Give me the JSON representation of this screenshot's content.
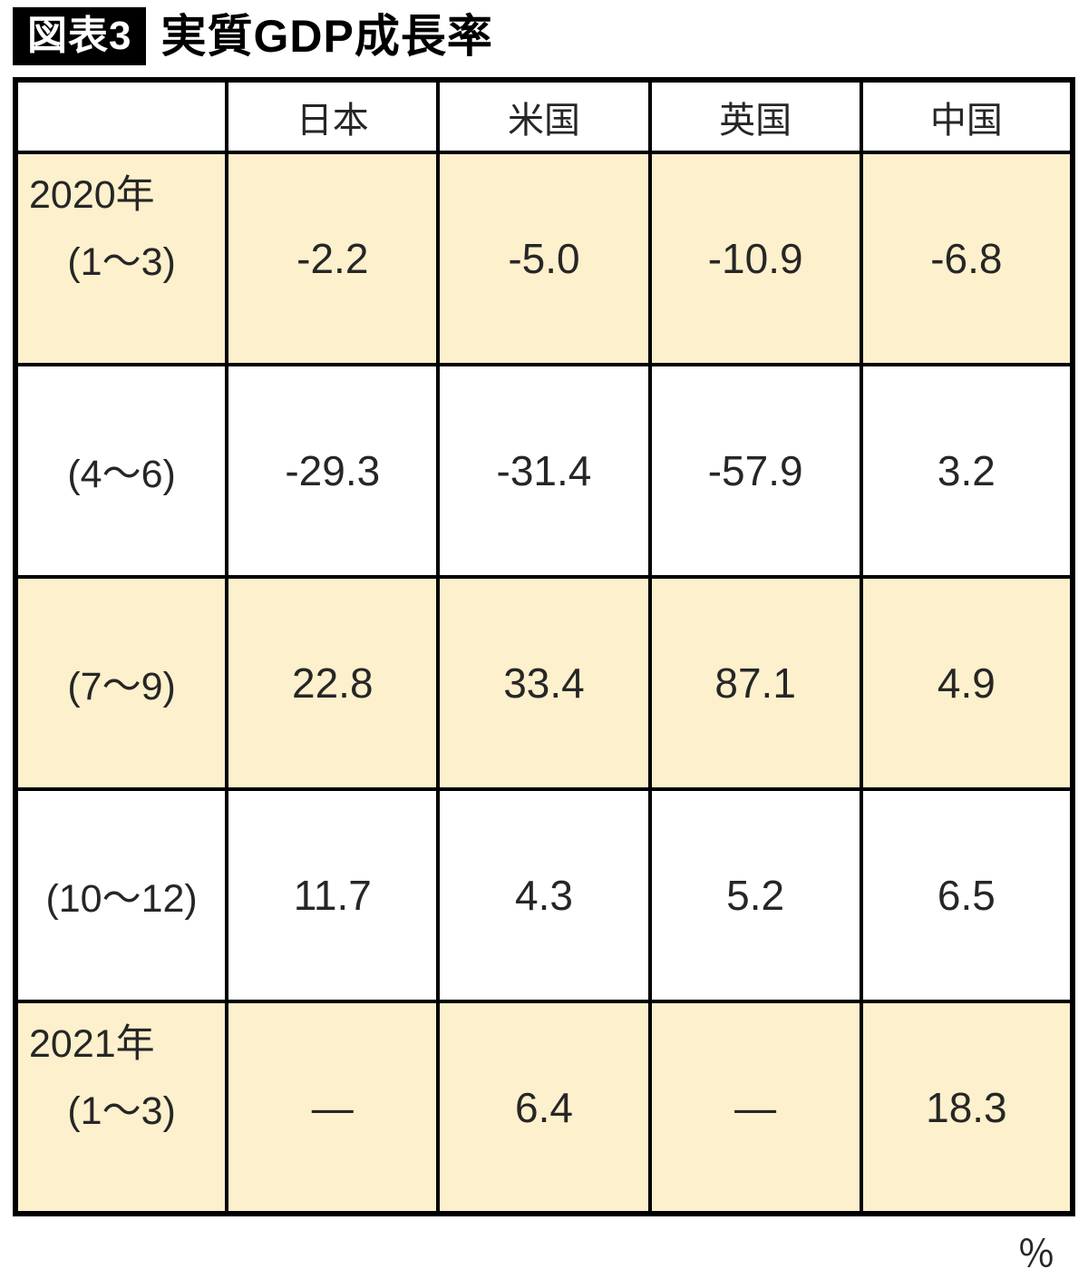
{
  "title": {
    "badge": "図表3",
    "text": "実質GDP成長率"
  },
  "unit_label": "％",
  "colors": {
    "shaded_row_bg": "#FDF0CC",
    "border": "#000000",
    "badge_bg": "#000000",
    "badge_text": "#FFFFFF",
    "text": "#262626"
  },
  "chart_data": {
    "type": "table",
    "title": "実質GDP成長率",
    "unit": "%",
    "columns": [
      "日本",
      "米国",
      "英国",
      "中国"
    ],
    "rows": [
      {
        "year": "2020年",
        "period": "(1～3)",
        "values": [
          "-2.2",
          "-5.0",
          "-10.9",
          "-6.8"
        ],
        "shaded": true
      },
      {
        "year": "",
        "period": "(4～6)",
        "values": [
          "-29.3",
          "-31.4",
          "-57.9",
          "3.2"
        ],
        "shaded": false
      },
      {
        "year": "",
        "period": "(7～9)",
        "values": [
          "22.8",
          "33.4",
          "87.1",
          "4.9"
        ],
        "shaded": true
      },
      {
        "year": "",
        "period": "(10～12)",
        "values": [
          "11.7",
          "4.3",
          "5.2",
          "6.5"
        ],
        "shaded": false
      },
      {
        "year": "2021年",
        "period": "(1～3)",
        "values": [
          "—",
          "6.4",
          "—",
          "18.3"
        ],
        "shaded": true
      }
    ]
  }
}
